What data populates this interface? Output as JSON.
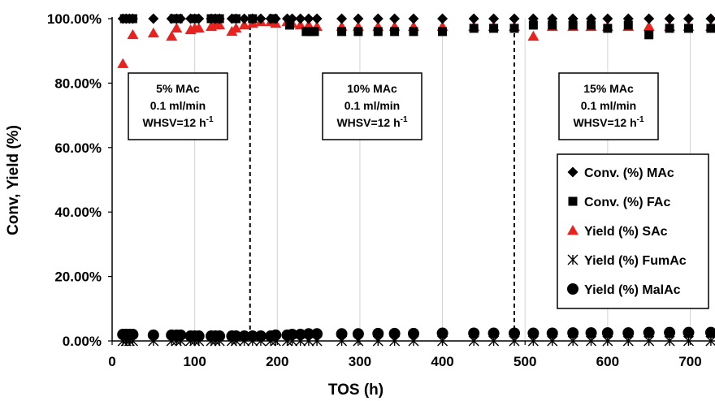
{
  "chart_data": {
    "type": "scatter",
    "xlabel": "TOS (h)",
    "ylabel": "Conv, Yield (%)",
    "xlim": [
      0,
      730
    ],
    "ylim": [
      0,
      100
    ],
    "xticks": [
      "0",
      "100",
      "200",
      "300",
      "400",
      "500",
      "600",
      "700"
    ],
    "yticks": [
      "0.00%",
      "20.00%",
      "40.00%",
      "60.00%",
      "80.00%",
      "100.00%"
    ],
    "grid": "vertical",
    "legend_position": "right",
    "dividers": [
      167,
      487
    ],
    "annotations": [
      {
        "lines": [
          "5% MAc",
          "0.1 ml/min",
          "WHSV=12 h-1"
        ]
      },
      {
        "lines": [
          "10% MAc",
          "0.1 ml/min",
          "WHSV=12 h-1"
        ]
      },
      {
        "lines": [
          "15% MAc",
          "0.1 ml/min",
          "WHSV=12 h-1"
        ]
      }
    ],
    "series": [
      {
        "name": "Conv. (%) MAc",
        "marker": "diamond",
        "color": "#000000",
        "x": [
          13,
          17,
          21,
          25,
          50,
          72,
          78,
          83,
          95,
          100,
          105,
          120,
          125,
          130,
          145,
          150,
          160,
          170,
          180,
          192,
          198,
          212,
          218,
          228,
          238,
          248,
          278,
          298,
          322,
          342,
          365,
          400,
          438,
          462,
          487,
          510,
          533,
          558,
          580,
          600,
          625,
          650,
          675,
          698,
          725
        ],
        "y": [
          100,
          100,
          100,
          100,
          100,
          100,
          100,
          100,
          100,
          100,
          100,
          100,
          100,
          100,
          100,
          100,
          100,
          100,
          100,
          100,
          100,
          100,
          100,
          100,
          100,
          100,
          100,
          100,
          100,
          100,
          100,
          100,
          100,
          100,
          100,
          100,
          100,
          100,
          100,
          100,
          100,
          100,
          100,
          100,
          100
        ]
      },
      {
        "name": "Conv. (%) FAc",
        "marker": "square",
        "color": "#000000",
        "x": [
          15,
          20,
          25,
          75,
          80,
          100,
          120,
          130,
          150,
          170,
          195,
          215,
          235,
          240,
          245,
          278,
          298,
          322,
          342,
          365,
          400,
          438,
          462,
          487,
          510,
          533,
          558,
          580,
          600,
          625,
          650,
          675,
          698,
          725
        ],
        "y": [
          100,
          100,
          100,
          100,
          100,
          100,
          100,
          100,
          100,
          100,
          100,
          98,
          96,
          96,
          96,
          96,
          96,
          96,
          96,
          96,
          96,
          97,
          97,
          97,
          98,
          98,
          98,
          98,
          97,
          98,
          95,
          97,
          97,
          97
        ]
      },
      {
        "name": "Yield (%) SAc",
        "marker": "triangle",
        "color": "#e8231f",
        "x": [
          13,
          25,
          50,
          72,
          78,
          95,
          100,
          105,
          120,
          125,
          130,
          145,
          150,
          160,
          170,
          180,
          192,
          198,
          212,
          218,
          228,
          238,
          248,
          278,
          298,
          322,
          342,
          365,
          400,
          438,
          462,
          487,
          510,
          533,
          558,
          580,
          600,
          625,
          650,
          675,
          698,
          725
        ],
        "y": [
          86,
          95,
          95.5,
          94.5,
          97,
          96.5,
          97,
          97,
          97.5,
          98,
          98,
          96,
          97,
          98,
          98.5,
          99,
          99,
          98.5,
          99,
          98.5,
          98,
          98,
          97.5,
          97.5,
          97.5,
          97.5,
          97.5,
          97.5,
          97.5,
          97.5,
          97.5,
          97.5,
          94.5,
          97.5,
          97.5,
          97.5,
          97.5,
          97.5,
          97.5,
          97.5,
          97.5,
          97.5
        ]
      },
      {
        "name": "Yield (%) FumAc",
        "marker": "asterisk",
        "color": "#000000",
        "x": [
          13,
          17,
          21,
          25,
          50,
          72,
          78,
          83,
          95,
          100,
          105,
          120,
          125,
          130,
          145,
          150,
          160,
          170,
          180,
          192,
          198,
          212,
          218,
          228,
          238,
          248,
          278,
          298,
          322,
          342,
          365,
          400,
          438,
          462,
          487,
          510,
          533,
          558,
          580,
          600,
          625,
          650,
          675,
          698,
          725
        ],
        "y": [
          0,
          0,
          0,
          0,
          0,
          0,
          0,
          0,
          0,
          0,
          0,
          0,
          0,
          0,
          0,
          0,
          0,
          0,
          0,
          0,
          0,
          0,
          0,
          0,
          0,
          0,
          0,
          0,
          0,
          0,
          0,
          0,
          0,
          0,
          0,
          0,
          0,
          0,
          0,
          0,
          0,
          0,
          0,
          0,
          0
        ]
      },
      {
        "name": "Yield (%) MalAc",
        "marker": "circle",
        "color": "#000000",
        "x": [
          13,
          17,
          21,
          25,
          50,
          72,
          78,
          83,
          95,
          100,
          105,
          120,
          125,
          130,
          145,
          150,
          160,
          170,
          180,
          192,
          198,
          212,
          218,
          228,
          238,
          248,
          278,
          298,
          322,
          342,
          365,
          400,
          438,
          462,
          487,
          510,
          533,
          558,
          580,
          600,
          625,
          650,
          675,
          698,
          725
        ],
        "y": [
          2,
          2,
          2,
          2,
          1.8,
          1.8,
          1.8,
          1.8,
          1.5,
          1.5,
          1.5,
          1.5,
          1.5,
          1.5,
          1.5,
          1.5,
          1.5,
          1.5,
          1.5,
          1.5,
          1.8,
          1.8,
          2,
          2,
          2.2,
          2.2,
          2.2,
          2.2,
          2.3,
          2.3,
          2.3,
          2.4,
          2.4,
          2.4,
          2.4,
          2.4,
          2.4,
          2.5,
          2.5,
          2.5,
          2.5,
          2.6,
          2.6,
          2.6,
          2.6
        ]
      }
    ]
  }
}
